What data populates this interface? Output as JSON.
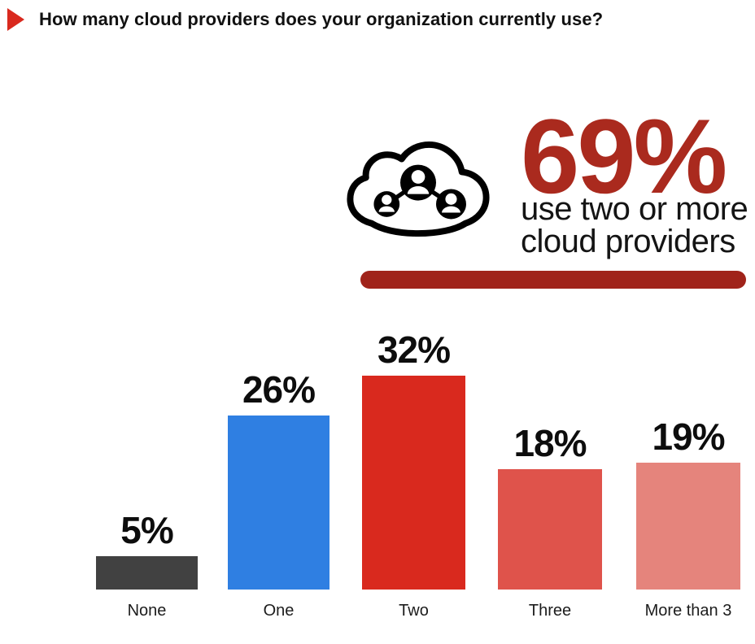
{
  "header": {
    "title": "How many cloud providers does your organization currently use?"
  },
  "callout": {
    "icon": "cloud-network-icon",
    "stat_value": "69%",
    "caption_line1": "use two or more",
    "caption_line2": "cloud providers",
    "stat_color": "#AA2A1E",
    "underline_color": "#A0231A"
  },
  "chart_data": {
    "type": "bar",
    "title": "How many cloud providers does your organization currently use?",
    "categories": [
      "None",
      "One",
      "Two",
      "Three",
      "More than 3"
    ],
    "values": [
      5,
      26,
      32,
      18,
      19
    ],
    "value_labels": [
      "5%",
      "26%",
      "32%",
      "18%",
      "19%"
    ],
    "bar_colors": [
      "#414141",
      "#2F7FE2",
      "#D9291E",
      "#DF534B",
      "#E5847C"
    ],
    "xlabel": "",
    "ylabel": "",
    "ylim": [
      0,
      35
    ],
    "grid": false,
    "legend": "none",
    "annotation": "69% use two or more cloud providers"
  }
}
